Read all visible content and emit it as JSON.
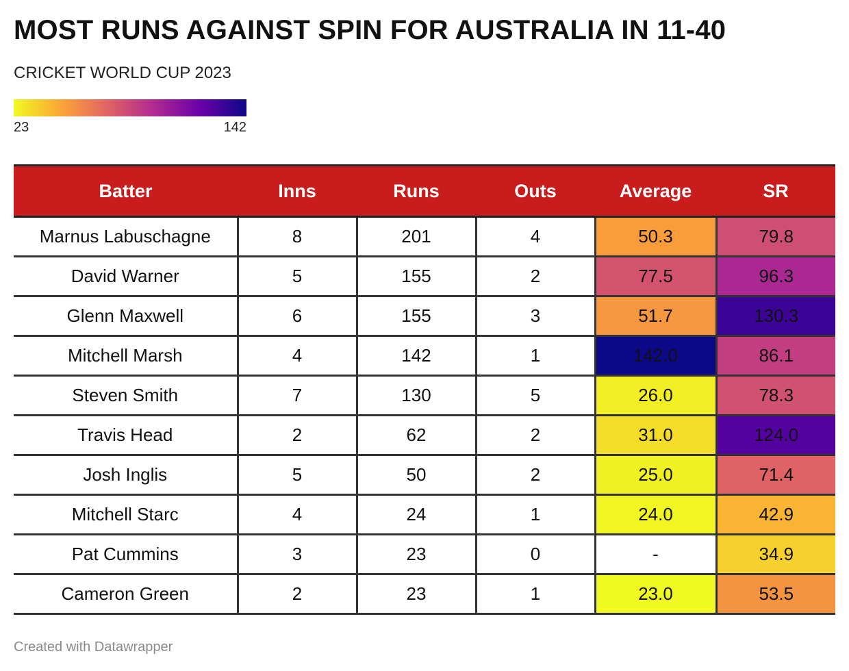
{
  "title": "MOST RUNS AGAINST SPIN FOR AUSTRALIA IN 11-40",
  "subtitle": "CRICKET WORLD CUP 2023",
  "legend": {
    "min": "23",
    "max": "142"
  },
  "footer": "Created with Datawrapper",
  "colors": {
    "header_bg": "#c91c1c",
    "header_text": "#ffffff",
    "border": "#333333",
    "scale": [
      "#f0f921",
      "#fca636",
      "#e16462",
      "#b12a90",
      "#6a00a8",
      "#0d0887"
    ]
  },
  "chart_data": {
    "type": "table",
    "columns": [
      "Batter",
      "Inns",
      "Runs",
      "Outs",
      "Average",
      "SR"
    ],
    "color_scale": {
      "min": 23,
      "max": 142,
      "columns_colored": [
        "Average",
        "SR"
      ]
    },
    "rows": [
      {
        "batter": "Marnus Labuschagne",
        "inns": "8",
        "runs": "201",
        "outs": "4",
        "average": "50.3",
        "sr": "79.8"
      },
      {
        "batter": "David Warner",
        "inns": "5",
        "runs": "155",
        "outs": "2",
        "average": "77.5",
        "sr": "96.3"
      },
      {
        "batter": "Glenn Maxwell",
        "inns": "6",
        "runs": "155",
        "outs": "3",
        "average": "51.7",
        "sr": "130.3"
      },
      {
        "batter": "Mitchell Marsh",
        "inns": "4",
        "runs": "142",
        "outs": "1",
        "average": "142.0",
        "sr": "86.1"
      },
      {
        "batter": "Steven Smith",
        "inns": "7",
        "runs": "130",
        "outs": "5",
        "average": "26.0",
        "sr": "78.3"
      },
      {
        "batter": "Travis Head",
        "inns": "2",
        "runs": "62",
        "outs": "2",
        "average": "31.0",
        "sr": "124.0"
      },
      {
        "batter": "Josh Inglis",
        "inns": "5",
        "runs": "50",
        "outs": "2",
        "average": "25.0",
        "sr": "71.4"
      },
      {
        "batter": "Mitchell Starc",
        "inns": "4",
        "runs": "24",
        "outs": "1",
        "average": "24.0",
        "sr": "42.9"
      },
      {
        "batter": "Pat Cummins",
        "inns": "3",
        "runs": "23",
        "outs": "0",
        "average": "-",
        "sr": "34.9"
      },
      {
        "batter": "Cameron Green",
        "inns": "2",
        "runs": "23",
        "outs": "1",
        "average": "23.0",
        "sr": "53.5"
      }
    ]
  }
}
